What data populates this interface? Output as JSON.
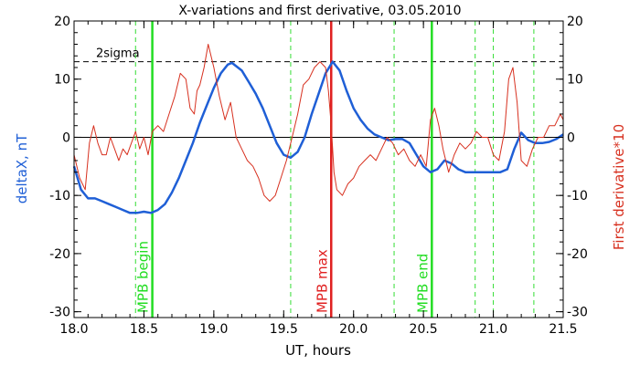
{
  "chart_data": {
    "type": "line",
    "title": "X-variations and first derivative, 03.05.2010",
    "xlabel": "UT, hours",
    "ylabel_left": "deltaX, nT",
    "ylabel_right": "First derivative*10",
    "xlim": [
      18.0,
      21.5
    ],
    "ylim": [
      -31,
      20
    ],
    "x_ticks": [
      18.0,
      18.5,
      19.0,
      19.5,
      20.0,
      20.5,
      21.0,
      21.5
    ],
    "x_tick_labels": [
      "18.0",
      "18.5",
      "19.0",
      "19.5",
      "20.0",
      "20.5",
      "21.0",
      "21.5"
    ],
    "y_ticks": [
      -30,
      -20,
      -10,
      0,
      10,
      20
    ],
    "y_tick_labels": [
      "-30",
      "-20",
      "-10",
      "0",
      "10",
      "20"
    ],
    "zero_line": 0,
    "threshold": {
      "value": 13,
      "label": "2sigma",
      "color": "#000000"
    },
    "colors": {
      "deltaX": "#1f5fd6",
      "derivative": "#d7301f",
      "mpb": "#22dd22",
      "max": "#e02020",
      "dashed_green": "#33dd33"
    },
    "vlines": [
      {
        "x": 18.56,
        "label": "MPB begin",
        "color": "#22dd22",
        "style": "solid"
      },
      {
        "x": 19.84,
        "label": "MPB max",
        "color": "#e02020",
        "style": "solid"
      },
      {
        "x": 20.56,
        "label": "MPB end",
        "color": "#22dd22",
        "style": "solid"
      },
      {
        "x": 18.44,
        "style": "dashed",
        "color": "#33dd33"
      },
      {
        "x": 19.55,
        "style": "dashed",
        "color": "#33dd33"
      },
      {
        "x": 20.29,
        "style": "dashed",
        "color": "#33dd33"
      },
      {
        "x": 20.87,
        "style": "dashed",
        "color": "#33dd33"
      },
      {
        "x": 21.0,
        "style": "dashed",
        "color": "#33dd33"
      },
      {
        "x": 21.29,
        "style": "dashed",
        "color": "#33dd33"
      }
    ],
    "series": [
      {
        "key": "deltaX",
        "x": [
          18.0,
          18.05,
          18.1,
          18.15,
          18.2,
          18.25,
          18.3,
          18.35,
          18.4,
          18.45,
          18.5,
          18.55,
          18.6,
          18.65,
          18.7,
          18.75,
          18.8,
          18.85,
          18.9,
          18.95,
          19.0,
          19.05,
          19.1,
          19.13,
          19.2,
          19.25,
          19.3,
          19.35,
          19.4,
          19.45,
          19.5,
          19.55,
          19.6,
          19.65,
          19.7,
          19.75,
          19.8,
          19.85,
          19.9,
          19.95,
          20.0,
          20.05,
          20.1,
          20.15,
          20.2,
          20.25,
          20.3,
          20.35,
          20.4,
          20.45,
          20.5,
          20.55,
          20.6,
          20.65,
          20.7,
          20.75,
          20.8,
          20.85,
          20.9,
          20.95,
          21.0,
          21.05,
          21.1,
          21.15,
          21.2,
          21.25,
          21.3,
          21.35,
          21.4,
          21.45,
          21.5
        ],
        "y": [
          -5,
          -9,
          -10.5,
          -10.5,
          -11,
          -11.5,
          -12,
          -12.5,
          -13,
          -13,
          -12.8,
          -13,
          -12.5,
          -11.5,
          -9.5,
          -7,
          -4,
          -1,
          2.5,
          5.5,
          8.5,
          11,
          12.5,
          12.8,
          11.5,
          9.5,
          7.5,
          5,
          2,
          -1,
          -3,
          -3.5,
          -2.5,
          0,
          4,
          7.5,
          11,
          13,
          11.5,
          8,
          5,
          3,
          1.5,
          0.5,
          0,
          -0.5,
          -0.3,
          -0.3,
          -1,
          -3,
          -5,
          -6,
          -5.5,
          -4,
          -4.5,
          -5.5,
          -6,
          -6,
          -6,
          -6,
          -6,
          -6,
          -5.5,
          -2,
          0.8,
          -0.5,
          -1,
          -1,
          -0.8,
          -0.3,
          0.5
        ]
      },
      {
        "key": "derivative",
        "x": [
          18.0,
          18.04,
          18.08,
          18.11,
          18.14,
          18.17,
          18.2,
          18.23,
          18.26,
          18.29,
          18.32,
          18.35,
          18.38,
          18.41,
          18.44,
          18.47,
          18.5,
          18.53,
          18.56,
          18.6,
          18.64,
          18.68,
          18.72,
          18.76,
          18.8,
          18.83,
          18.86,
          18.88,
          18.9,
          18.93,
          18.96,
          19.0,
          19.04,
          19.08,
          19.12,
          19.16,
          19.2,
          19.24,
          19.28,
          19.32,
          19.36,
          19.4,
          19.44,
          19.48,
          19.52,
          19.56,
          19.6,
          19.64,
          19.68,
          19.72,
          19.76,
          19.8,
          19.82,
          19.84,
          19.86,
          19.88,
          19.92,
          19.96,
          20.0,
          20.04,
          20.08,
          20.12,
          20.16,
          20.2,
          20.24,
          20.28,
          20.32,
          20.36,
          20.4,
          20.44,
          20.48,
          20.52,
          20.55,
          20.58,
          20.61,
          20.64,
          20.68,
          20.72,
          20.76,
          20.8,
          20.84,
          20.88,
          20.92,
          20.96,
          21.0,
          21.04,
          21.08,
          21.11,
          21.14,
          21.17,
          21.2,
          21.24,
          21.28,
          21.32,
          21.36,
          21.4,
          21.44,
          21.48,
          21.5
        ],
        "y": [
          -3,
          -7,
          -9,
          -1,
          2,
          -1,
          -3,
          -3,
          0,
          -2,
          -4,
          -2,
          -3,
          -1,
          1,
          -2,
          0,
          -3,
          1,
          2,
          1,
          4,
          7,
          11,
          10,
          5,
          4,
          8,
          9,
          12,
          16,
          12,
          7,
          3,
          6,
          0,
          -2,
          -4,
          -5,
          -7,
          -10,
          -11,
          -10,
          -7,
          -4,
          0,
          4,
          9,
          10,
          12,
          13,
          12,
          8,
          2,
          -6,
          -9,
          -10,
          -8,
          -7,
          -5,
          -4,
          -3,
          -4,
          -2,
          0,
          -1,
          -3,
          -2,
          -4,
          -5,
          -3,
          -5,
          3,
          5,
          2,
          -2,
          -6,
          -3,
          -1,
          -2,
          -1,
          1,
          0,
          0,
          -3,
          -4,
          1,
          10,
          12,
          6,
          -4,
          -5,
          -2,
          0,
          0,
          2,
          2,
          4,
          3
        ]
      }
    ]
  }
}
